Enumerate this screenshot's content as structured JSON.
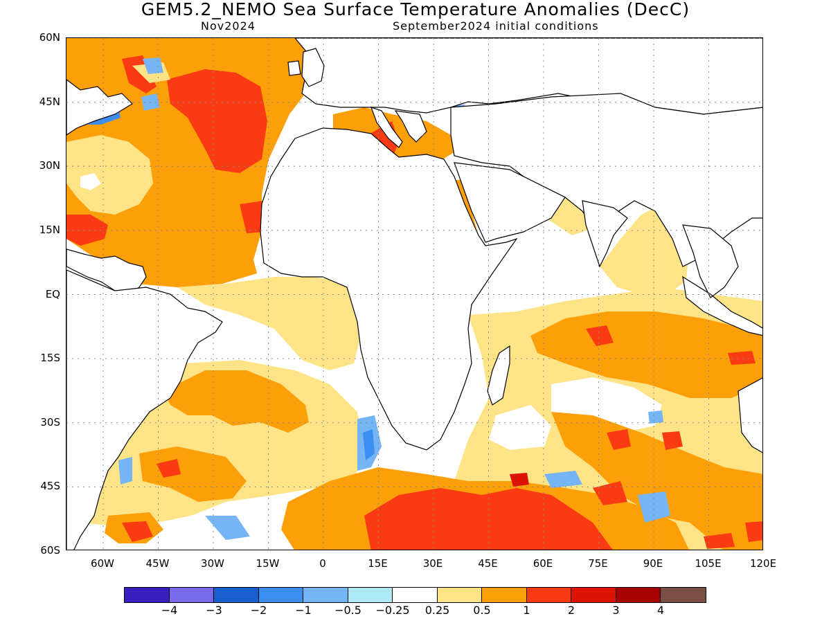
{
  "title": "GEM5.2_NEMO Sea Surface Temperature Anomalies (DecC)",
  "subtitle_left": "Nov2024",
  "subtitle_right": "September2024 initial conditions",
  "lat_labels": [
    "60N",
    "45N",
    "30N",
    "15N",
    "EQ",
    "15S",
    "30S",
    "45S",
    "60S"
  ],
  "lon_labels": [
    "60W",
    "45W",
    "30W",
    "15W",
    "0",
    "15E",
    "30E",
    "45E",
    "60E",
    "75E",
    "90E",
    "105E",
    "120E"
  ],
  "colorbar": {
    "colors": [
      "#3a1fbf",
      "#7a6aec",
      "#1a5fd0",
      "#3c8ff0",
      "#75b4f5",
      "#aeeaf6",
      "#ffffff",
      "#fee487",
      "#fd9f09",
      "#fa3a12",
      "#dd1403",
      "#a50200",
      "#7a5044"
    ],
    "labels": [
      "-4",
      "-3",
      "-2",
      "-1",
      "-0.5",
      "-0.25",
      "0.25",
      "0.5",
      "1",
      "2",
      "3",
      "4"
    ]
  },
  "chart_data": {
    "type": "heatmap",
    "title": "GEM5.2_NEMO Sea Surface Temperature Anomalies (DecC)",
    "subtitle": "Nov2024 / September2024 initial conditions",
    "lon_range": [
      -70,
      120
    ],
    "lat_range": [
      -60,
      60
    ],
    "color_levels": [
      -4,
      -3,
      -2,
      -1,
      -0.5,
      -0.25,
      0.25,
      0.5,
      1,
      2,
      3,
      4
    ]
  }
}
